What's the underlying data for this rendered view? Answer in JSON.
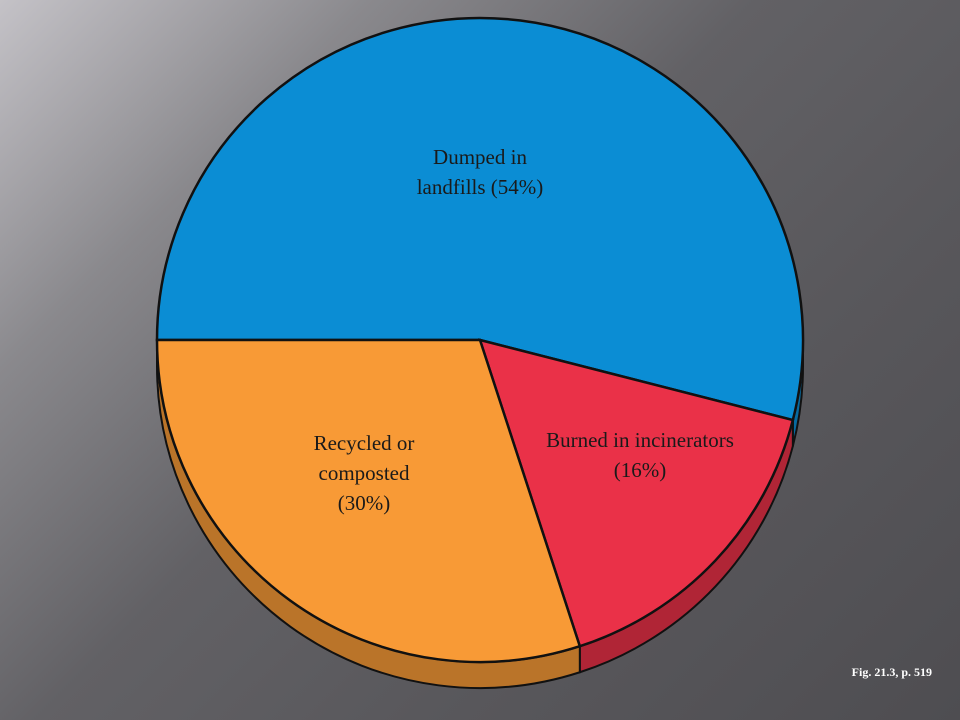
{
  "chart_data": {
    "type": "pie",
    "categories": [
      "Dumped in landfills",
      "Burned in incinerators",
      "Recycled or composted"
    ],
    "values": [
      54,
      16,
      30
    ],
    "value_labels": [
      "(54%)",
      "(16%)",
      "(30%)"
    ],
    "colors": [
      "#0b8dd4",
      "#ea3148",
      "#f89a36"
    ],
    "note": "Fig. 21.3, p. 519"
  }
}
